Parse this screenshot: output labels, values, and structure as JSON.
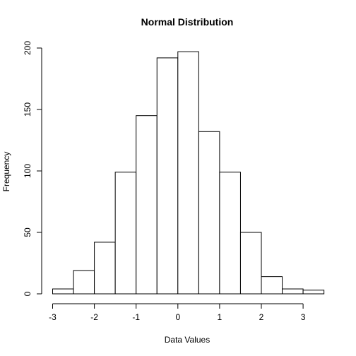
{
  "chart_data": {
    "type": "bar",
    "title": "Normal Distribution",
    "xlabel": "Data Values",
    "ylabel": "Frequency",
    "bins": [
      {
        "start": -3.0,
        "end": -2.5,
        "count": 4
      },
      {
        "start": -2.5,
        "end": -2.0,
        "count": 19
      },
      {
        "start": -2.0,
        "end": -1.5,
        "count": 42
      },
      {
        "start": -1.5,
        "end": -1.0,
        "count": 99
      },
      {
        "start": -1.0,
        "end": -0.5,
        "count": 145
      },
      {
        "start": -0.5,
        "end": 0.0,
        "count": 192
      },
      {
        "start": 0.0,
        "end": 0.5,
        "count": 197
      },
      {
        "start": 0.5,
        "end": 1.0,
        "count": 132
      },
      {
        "start": 1.0,
        "end": 1.5,
        "count": 99
      },
      {
        "start": 1.5,
        "end": 2.0,
        "count": 50
      },
      {
        "start": 2.0,
        "end": 2.5,
        "count": 14
      },
      {
        "start": 2.5,
        "end": 3.0,
        "count": 4
      },
      {
        "start": 3.0,
        "end": 3.5,
        "count": 3
      }
    ],
    "xlim": [
      -3,
      3.5
    ],
    "ylim": [
      0,
      200
    ],
    "xticks": [
      -3,
      -2,
      -1,
      0,
      1,
      2,
      3
    ],
    "yticks": [
      0,
      50,
      100,
      150,
      200
    ],
    "grid": false,
    "bar_fill": "#ffffff",
    "bar_stroke": "#000000"
  }
}
